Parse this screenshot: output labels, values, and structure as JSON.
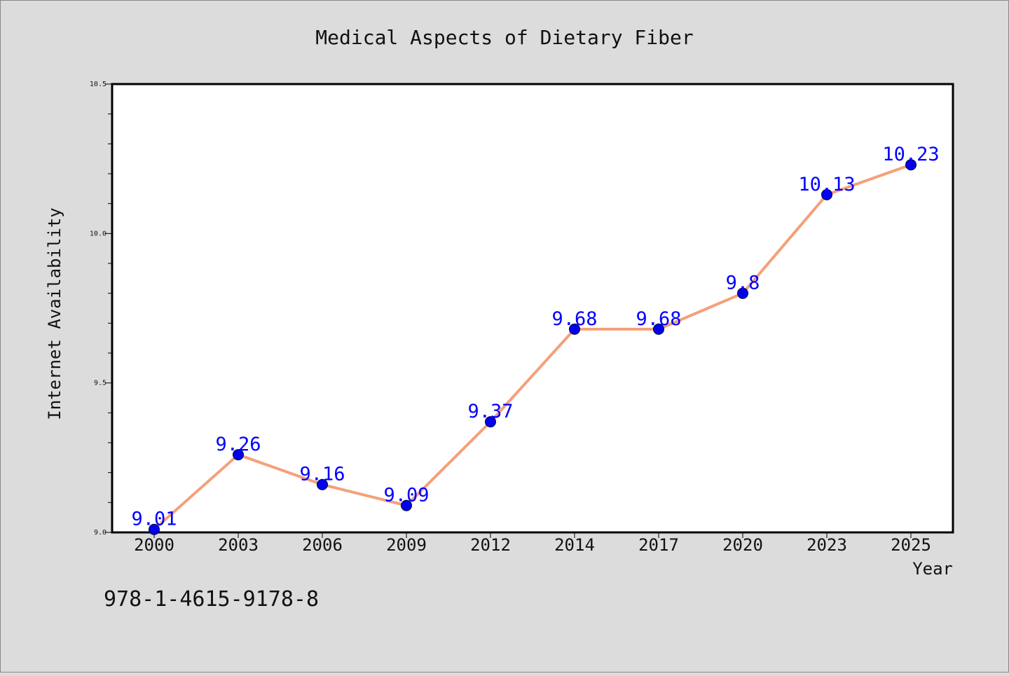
{
  "chart_data": {
    "type": "line",
    "title": "Medical Aspects of Dietary Fiber",
    "xlabel": "Year",
    "ylabel": "Internet Availability",
    "categories": [
      "2000",
      "2003",
      "2006",
      "2009",
      "2012",
      "2014",
      "2017",
      "2020",
      "2023",
      "2025"
    ],
    "series": [
      {
        "values": [
          9.01,
          9.26,
          9.16,
          9.09,
          9.37,
          9.68,
          9.68,
          9.8,
          10.13,
          10.23
        ],
        "data_labels": [
          "9.01",
          "9.26",
          "9.16",
          "9.09",
          "9.37",
          "9.68",
          "9.68",
          "9.8",
          "10.13",
          "10.23"
        ],
        "line_color": "#f4a07a",
        "marker_color": "#0000ee"
      }
    ],
    "ylim": [
      9.0,
      10.5
    ],
    "yticks": [
      "9.0",
      "9.5",
      "10.0",
      "10.5"
    ],
    "grid": false,
    "label_color": "#0000ff",
    "annotation": "978-1-4615-9178-8"
  }
}
